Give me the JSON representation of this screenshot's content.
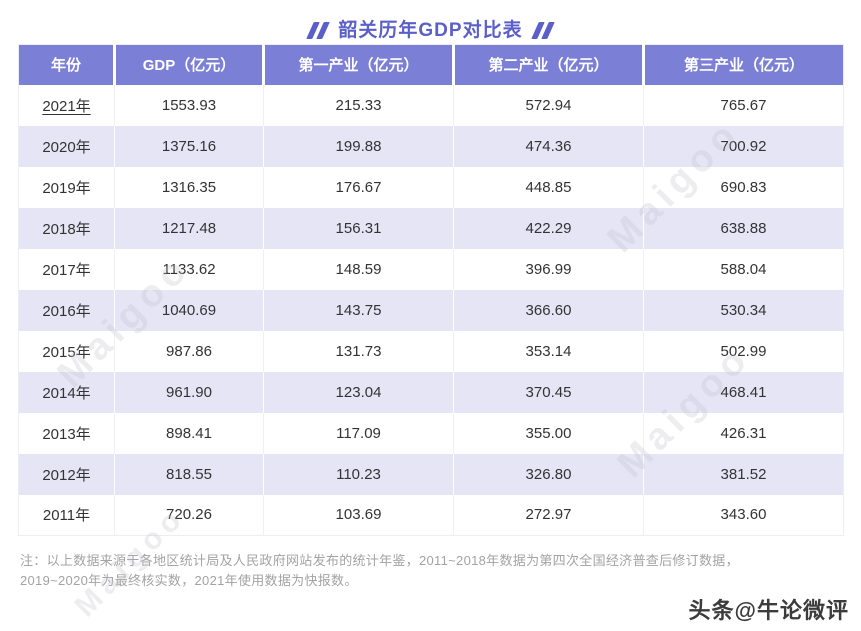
{
  "title": "韶关历年GDP对比表",
  "watermark": "Maigoo",
  "footer_badge": "头条@牛论微评",
  "note": {
    "line1": "注：以上数据来源于各地区统计局及人民政府网站发布的统计年鉴，2011~2018年数据为第四次全国经济普查后修订数据，",
    "line2": "2019~2020年为最终核实数，2021年使用数据为快报数。"
  },
  "colors": {
    "accent": "#5a5fc9",
    "header_bg": "#7b80d6",
    "row_alt": "#e5e5f6"
  },
  "chart_data": {
    "type": "table",
    "title": "韶关历年GDP对比表",
    "columns": [
      "年份",
      "GDP（亿元）",
      "第一产业（亿元）",
      "第二产业（亿元）",
      "第三产业（亿元）"
    ],
    "rows": [
      [
        "2021年",
        "1553.93",
        "215.33",
        "572.94",
        "765.67"
      ],
      [
        "2020年",
        "1375.16",
        "199.88",
        "474.36",
        "700.92"
      ],
      [
        "2019年",
        "1316.35",
        "176.67",
        "448.85",
        "690.83"
      ],
      [
        "2018年",
        "1217.48",
        "156.31",
        "422.29",
        "638.88"
      ],
      [
        "2017年",
        "1133.62",
        "148.59",
        "396.99",
        "588.04"
      ],
      [
        "2016年",
        "1040.69",
        "143.75",
        "366.60",
        "530.34"
      ],
      [
        "2015年",
        "987.86",
        "131.73",
        "353.14",
        "502.99"
      ],
      [
        "2014年",
        "961.90",
        "123.04",
        "370.45",
        "468.41"
      ],
      [
        "2013年",
        "898.41",
        "117.09",
        "355.00",
        "426.31"
      ],
      [
        "2012年",
        "818.55",
        "110.23",
        "326.80",
        "381.52"
      ],
      [
        "2011年",
        "720.26",
        "103.69",
        "272.97",
        "343.60"
      ]
    ]
  }
}
